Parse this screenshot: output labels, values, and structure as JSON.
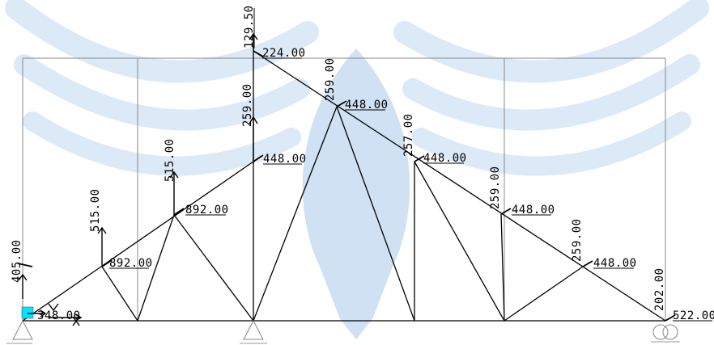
{
  "labels": {
    "top_vertical": "129.50",
    "top_horizontal": "224.00",
    "mid_vertical": "259.00",
    "node_7_vertical": "259.00",
    "node_7_horizontal": "448.00",
    "node_8_vertical": "257.00",
    "node_8_horizontal": "448.00",
    "node_9_vertical": "259.00",
    "node_9_horizontal": "448.00",
    "node_10_vertical": "259.00",
    "node_10_horizontal": "448.00",
    "node_5_horizontal": "448.00",
    "node_4_vertical": "515.00",
    "node_4_horizontal": "892.00",
    "node_3_vertical": "515.00",
    "node_3_horizontal": "892.00",
    "left_vertical": "405.00",
    "left_horizontal": "348.00",
    "right_vertical": "202.00",
    "right_horizontal": "522.00"
  },
  "colors": {
    "watermark": "#dce9f6",
    "watermark_center": "#cfe1f3",
    "members": "#000000",
    "frame": "#888888",
    "support_fill": "#00e5ff"
  },
  "icons": [
    "pin-support-icon",
    "roller-support-icon",
    "load-arrow-icon",
    "watermark-logo"
  ]
}
